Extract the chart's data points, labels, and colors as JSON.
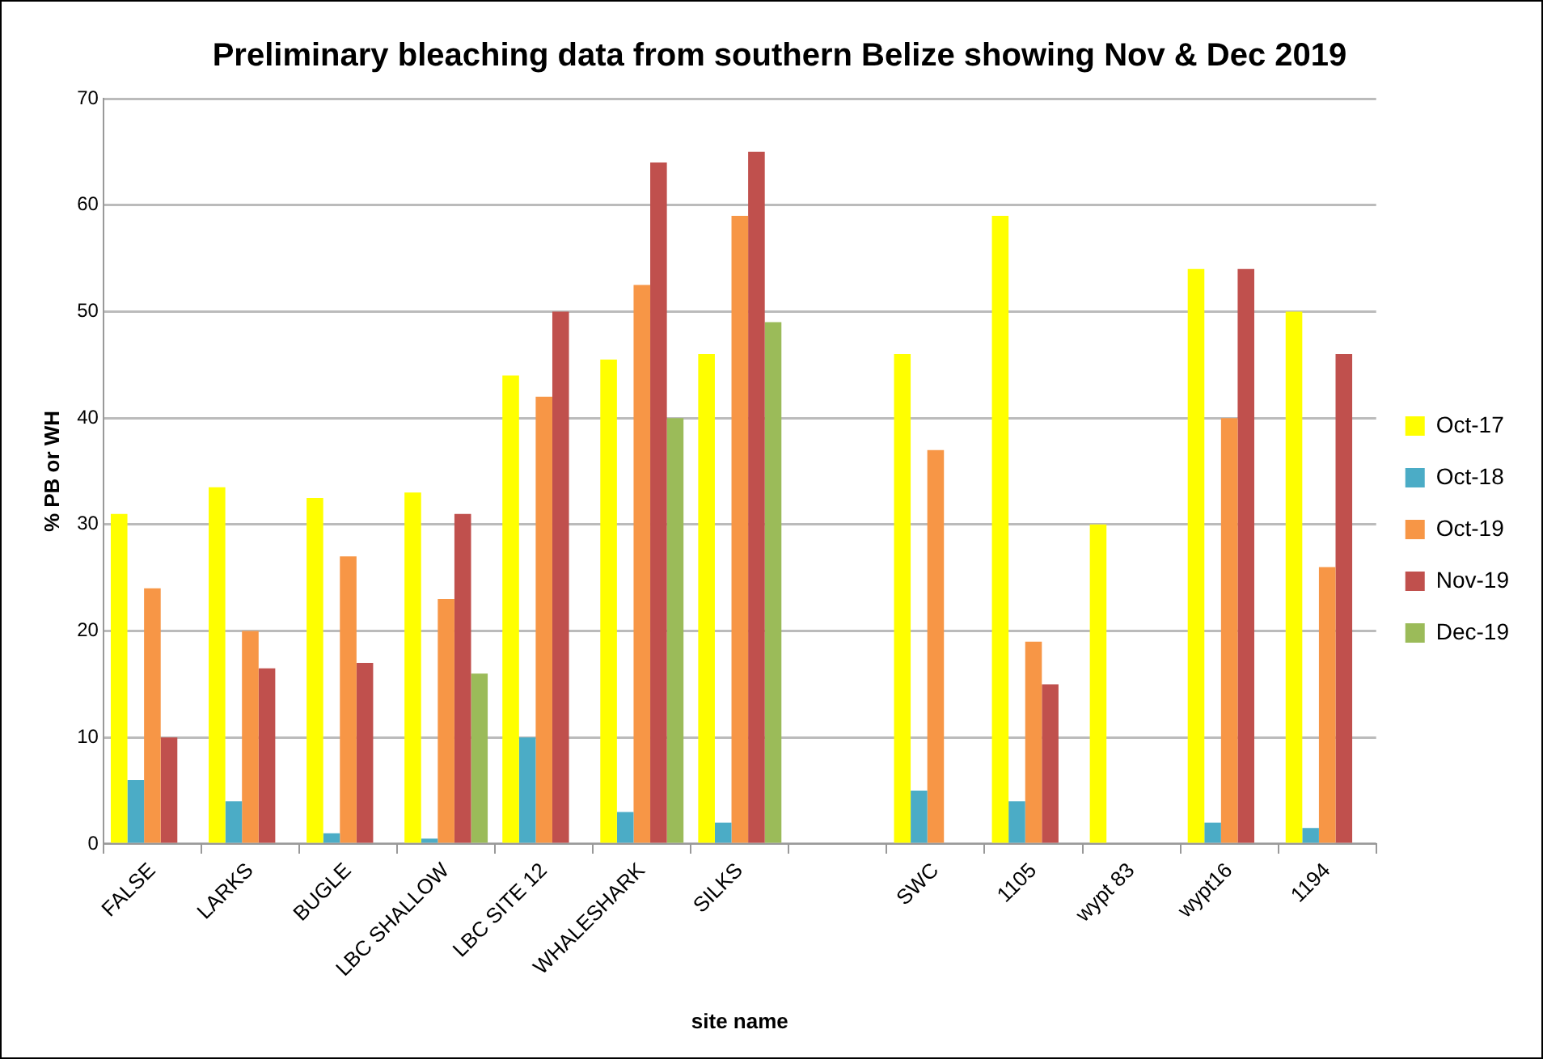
{
  "chart_data": {
    "type": "bar",
    "title": "Preliminary bleaching data from southern Belize showing Nov & Dec 2019",
    "xlabel": "site name",
    "ylabel": "% PB or WH",
    "categories": [
      "FALSE",
      "LARKS",
      "BUGLE",
      "LBC SHALLOW",
      "LBC SITE 12",
      "WHALESHARK",
      "SILKS",
      null,
      "SWC",
      "1105",
      "wypt 83",
      "wypt16",
      "1194"
    ],
    "series": [
      {
        "name": "Oct-17",
        "color": "#ffff00",
        "values": [
          31,
          33.5,
          32.5,
          33,
          44,
          45.5,
          46,
          null,
          46,
          59,
          30,
          54,
          50
        ]
      },
      {
        "name": "Oct-18",
        "color": "#4bacc6",
        "values": [
          6,
          4,
          1,
          0.5,
          10,
          3,
          2,
          null,
          5,
          4,
          null,
          2,
          1.5
        ]
      },
      {
        "name": "Oct-19",
        "color": "#f79646",
        "values": [
          24,
          20,
          27,
          23,
          42,
          52.5,
          59,
          null,
          37,
          19,
          null,
          40,
          26
        ]
      },
      {
        "name": "Nov-19",
        "color": "#c0504d",
        "values": [
          10,
          16.5,
          17,
          31,
          50,
          64,
          65,
          null,
          null,
          15,
          null,
          54,
          46
        ]
      },
      {
        "name": "Dec-19",
        "color": "#9bbb59",
        "values": [
          null,
          null,
          null,
          16,
          null,
          40,
          49,
          null,
          null,
          null,
          null,
          null,
          null
        ]
      }
    ],
    "ylim": [
      0,
      70
    ],
    "yticks": [
      0,
      10,
      20,
      30,
      40,
      50,
      60,
      70
    ],
    "grid": "y",
    "legend": "right"
  }
}
